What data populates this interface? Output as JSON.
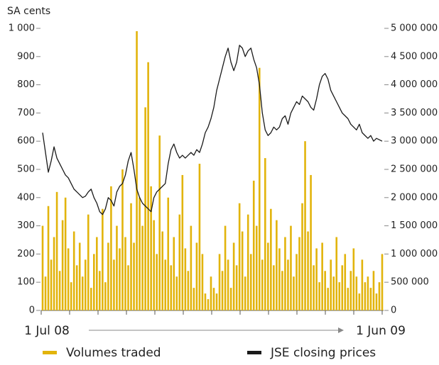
{
  "chart_data": {
    "type": "bar",
    "y_label": "SA cents",
    "categories": [
      "1 Jul 08",
      null,
      null,
      null,
      null,
      null,
      null,
      null,
      null,
      null,
      null,
      null,
      null,
      null,
      null,
      null,
      null,
      null,
      null,
      null,
      null,
      null,
      null,
      null,
      null,
      null,
      null,
      null,
      null,
      null,
      null,
      null,
      null,
      null,
      null,
      null,
      null,
      null,
      null,
      null,
      null,
      null,
      null,
      null,
      null,
      null,
      null,
      null,
      null,
      null,
      null,
      null,
      null,
      null,
      null,
      null,
      null,
      null,
      null,
      null,
      null,
      null,
      null,
      null,
      null,
      null,
      null,
      null,
      null,
      null,
      null,
      null,
      null,
      null,
      null,
      null,
      null,
      null,
      null,
      null,
      null,
      null,
      null,
      null,
      null,
      null,
      null,
      null,
      null,
      null,
      null,
      null,
      null,
      null,
      null,
      null,
      null,
      null,
      null,
      null,
      null,
      null,
      null,
      null,
      null,
      null,
      null,
      null,
      null,
      null,
      null,
      null,
      null,
      null,
      null,
      null,
      null,
      null,
      null,
      "1 Jun 09"
    ],
    "series": [
      {
        "name": "Volumes traded",
        "color": "#e2b40c",
        "axis": "y2",
        "type": "bar",
        "values": [
          1500000,
          600000,
          1850000,
          900000,
          1300000,
          2100000,
          700000,
          1600000,
          2000000,
          1100000,
          500000,
          1400000,
          800000,
          1200000,
          600000,
          900000,
          1700000,
          400000,
          1000000,
          1300000,
          700000,
          1800000,
          500000,
          1200000,
          2200000,
          900000,
          1500000,
          1100000,
          2500000,
          1300000,
          800000,
          1900000,
          1200000,
          4950000,
          2000000,
          1500000,
          3600000,
          4400000,
          2200000,
          1600000,
          1000000,
          3100000,
          1400000,
          900000,
          2000000,
          800000,
          1300000,
          600000,
          1700000,
          2400000,
          1100000,
          700000,
          1500000,
          400000,
          1200000,
          2600000,
          1000000,
          300000,
          200000,
          600000,
          400000,
          300000,
          1000000,
          700000,
          1500000,
          900000,
          400000,
          1200000,
          800000,
          1900000,
          1400000,
          600000,
          1700000,
          1000000,
          2300000,
          1500000,
          4300000,
          900000,
          2700000,
          1200000,
          1800000,
          800000,
          1600000,
          1100000,
          700000,
          1300000,
          900000,
          1500000,
          600000,
          1000000,
          1300000,
          1900000,
          3000000,
          1400000,
          2400000,
          800000,
          1100000,
          500000,
          1200000,
          700000,
          400000,
          900000,
          600000,
          1300000,
          500000,
          800000,
          1000000,
          400000,
          700000,
          1100000,
          600000,
          300000,
          900000,
          500000,
          600000,
          400000,
          700000,
          300000,
          500000,
          1000000
        ]
      },
      {
        "name": "JSE closing prices",
        "color": "#1a1a1a",
        "type": "line",
        "values": [
          630,
          560,
          490,
          530,
          580,
          540,
          520,
          500,
          480,
          470,
          450,
          430,
          420,
          410,
          400,
          405,
          420,
          430,
          400,
          380,
          350,
          340,
          360,
          400,
          390,
          370,
          420,
          440,
          450,
          480,
          530,
          560,
          500,
          430,
          400,
          380,
          370,
          360,
          350,
          400,
          420,
          430,
          440,
          450,
          520,
          570,
          590,
          560,
          540,
          550,
          540,
          550,
          560,
          550,
          570,
          560,
          590,
          630,
          650,
          680,
          720,
          780,
          820,
          860,
          900,
          930,
          880,
          850,
          880,
          940,
          930,
          900,
          920,
          930,
          890,
          860,
          800,
          700,
          640,
          620,
          630,
          650,
          640,
          650,
          680,
          690,
          660,
          700,
          720,
          740,
          730,
          760,
          750,
          740,
          720,
          710,
          750,
          800,
          830,
          840,
          820,
          780,
          760,
          740,
          720,
          700,
          690,
          680,
          660,
          650,
          640,
          660,
          630,
          620,
          610,
          620,
          600,
          610,
          605,
          600
        ]
      }
    ],
    "ylim": [
      0,
      1000
    ],
    "yticks": [
      0,
      100,
      200,
      300,
      400,
      500,
      600,
      700,
      800,
      900,
      {
        "value": 1000,
        "label": "1 000"
      }
    ],
    "y2lim": [
      0,
      5000000
    ],
    "y2ticks": [
      0,
      {
        "value": 500000,
        "label": "500 000"
      },
      {
        "value": 1000000,
        "label": "1 000 000"
      },
      {
        "value": 1500000,
        "label": "1 500 000"
      },
      {
        "value": 2000000,
        "label": "2 000 000"
      },
      {
        "value": 2500000,
        "label": "2 500 000"
      },
      {
        "value": 3000000,
        "label": "3 000 000"
      },
      {
        "value": 3500000,
        "label": "3 500 000"
      },
      {
        "value": 4000000,
        "label": "4 000 000"
      },
      {
        "value": 4500000,
        "label": "4 500 000"
      },
      {
        "value": 5000000,
        "label": "5 000 000"
      }
    ]
  }
}
